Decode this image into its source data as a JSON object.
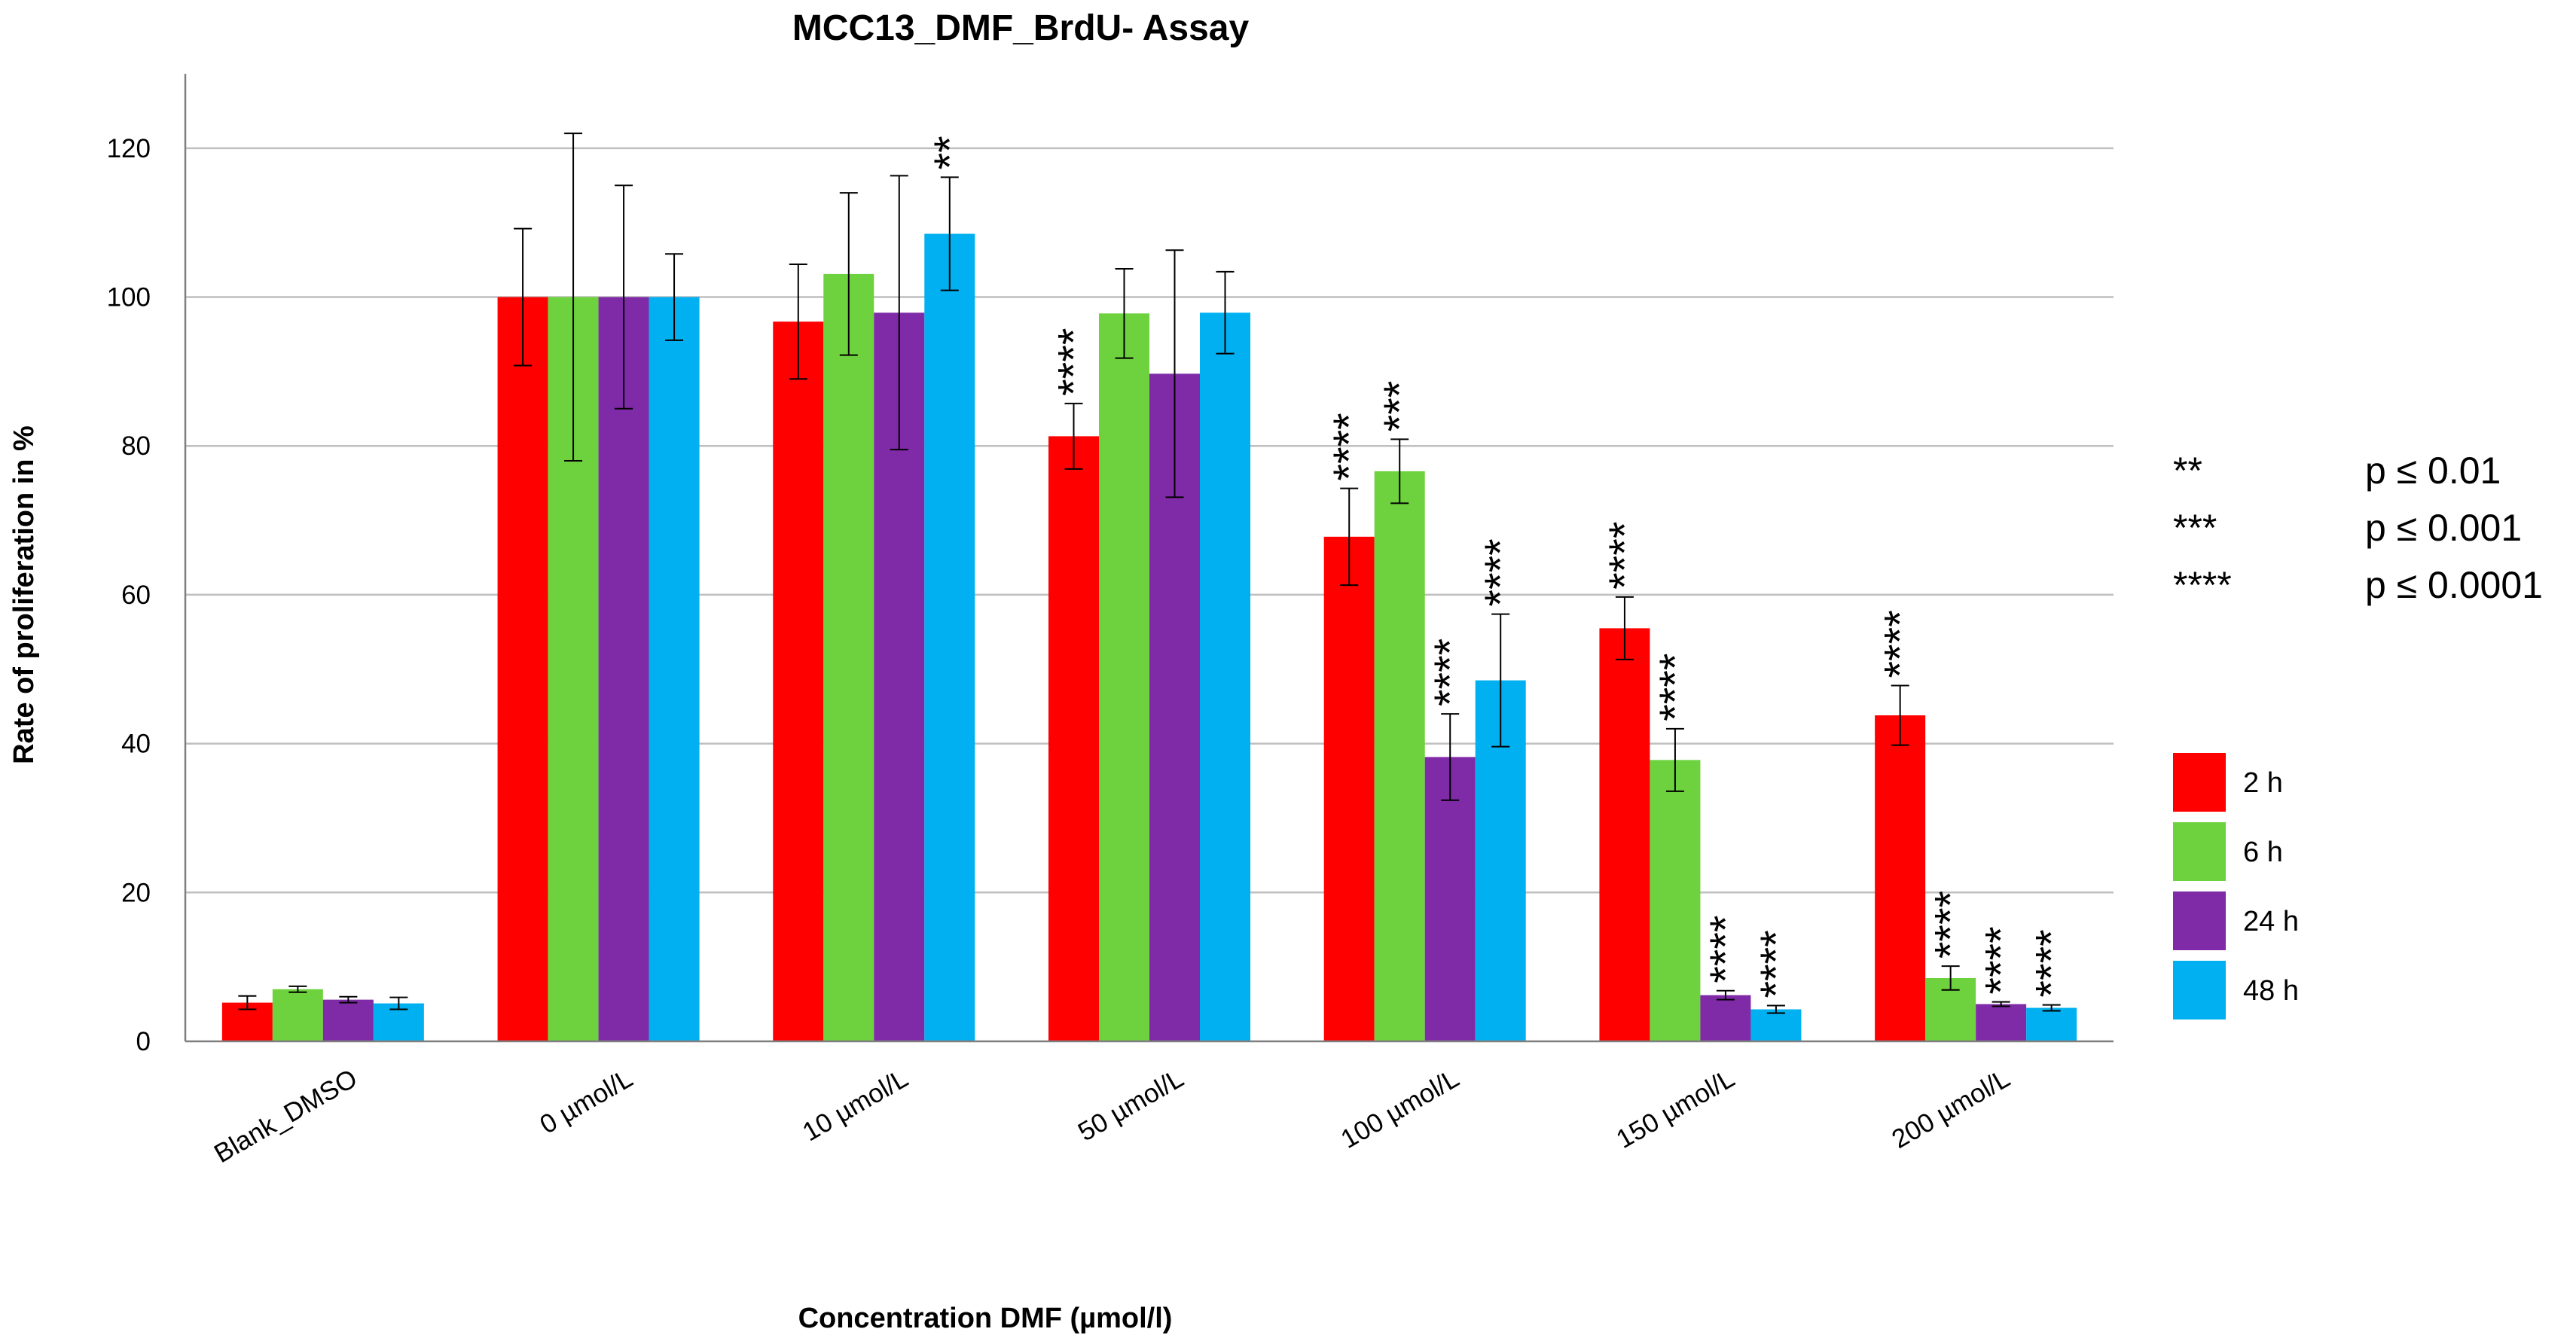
{
  "chart_data": {
    "type": "bar",
    "title": "MCC13_DMF_BrdU- Assay",
    "xlabel": "Concentration DMF (µmol/l)",
    "ylabel": "Rate of proliferation in %",
    "ylim": [
      0,
      130
    ],
    "yticks": [
      0,
      20,
      40,
      60,
      80,
      100,
      120
    ],
    "categories": [
      "Blank_DMSO",
      "0 µmol/L",
      "10 µmol/L",
      "50 µmol/L",
      "100 µmol/L",
      "150 µmol/L",
      "200 µmol/L"
    ],
    "series": [
      {
        "name": "2 h",
        "color": "#ff0000",
        "values": [
          5.2,
          100,
          96.7,
          81.3,
          67.8,
          55.5,
          43.8
        ],
        "errors": [
          0.9,
          9.2,
          7.7,
          4.4,
          6.5,
          4.2,
          4.0
        ],
        "stars": [
          "",
          "",
          "",
          "****",
          "****",
          "****",
          "****"
        ]
      },
      {
        "name": "6 h",
        "color": "#6dd23e",
        "values": [
          7.0,
          100,
          103.1,
          97.8,
          76.6,
          37.8,
          8.5
        ],
        "errors": [
          0.4,
          22.0,
          10.9,
          6.0,
          4.3,
          4.2,
          1.6
        ],
        "stars": [
          "",
          "",
          "",
          "",
          "***",
          "****",
          "****"
        ]
      },
      {
        "name": "24 h",
        "color": "#7f2aa6",
        "values": [
          5.6,
          100,
          97.9,
          89.7,
          38.2,
          6.2,
          5.0
        ],
        "errors": [
          0.4,
          15.0,
          18.4,
          16.6,
          5.8,
          0.6,
          0.3
        ],
        "stars": [
          "",
          "",
          "",
          "",
          "****",
          "****",
          "****"
        ]
      },
      {
        "name": "48 h",
        "color": "#00b0f0",
        "values": [
          5.1,
          100,
          108.5,
          97.9,
          48.5,
          4.3,
          4.5
        ],
        "errors": [
          0.8,
          5.8,
          7.6,
          5.5,
          8.9,
          0.5,
          0.4
        ],
        "stars": [
          "",
          "",
          "**",
          "",
          "****",
          "****",
          "****"
        ]
      }
    ],
    "significance_key": [
      {
        "stars": "**",
        "label": "p ≤ 0.01"
      },
      {
        "stars": "***",
        "label": "p ≤ 0.001"
      },
      {
        "stars": "****",
        "label": "p ≤ 0.0001"
      }
    ],
    "legend_position": "right"
  }
}
